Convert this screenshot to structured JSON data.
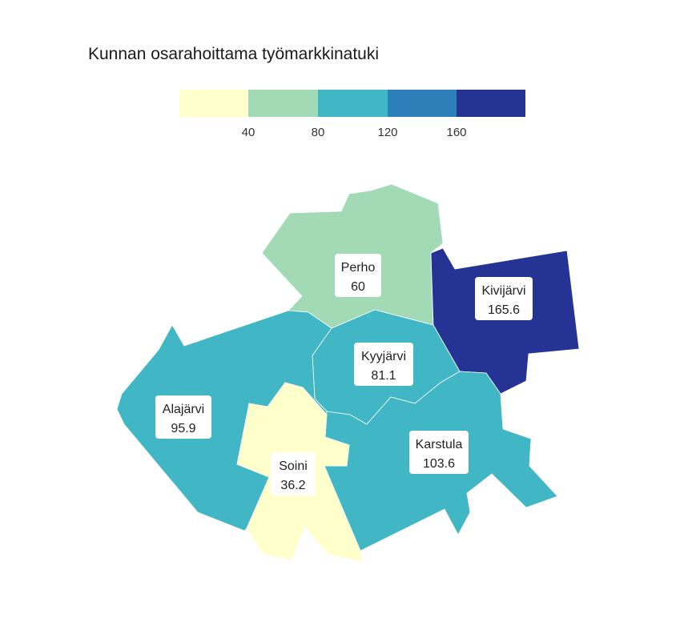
{
  "title": "Kunnan osarahoittama työmarkkinatuki",
  "legend": {
    "breaks": [
      40,
      80,
      120,
      160
    ],
    "tick_labels": [
      "40",
      "80",
      "120",
      "160"
    ],
    "colors": [
      "#ffffcc",
      "#a1dab4",
      "#41b6c4",
      "#2c7fb8",
      "#253494"
    ]
  },
  "regions": [
    {
      "name": "Perho",
      "value_label": "60",
      "value": 60,
      "color": "#a1dab4"
    },
    {
      "name": "Kivijärvi",
      "value_label": "165.6",
      "value": 165.6,
      "color": "#253494"
    },
    {
      "name": "Kyyjärvi",
      "value_label": "81.1",
      "value": 81.1,
      "color": "#41b6c4"
    },
    {
      "name": "Alajärvi",
      "value_label": "95.9",
      "value": 95.9,
      "color": "#41b6c4"
    },
    {
      "name": "Karstula",
      "value_label": "103.6",
      "value": 103.6,
      "color": "#41b6c4"
    },
    {
      "name": "Soini",
      "value_label": "36.2",
      "value": 36.2,
      "color": "#ffffcc"
    }
  ]
}
